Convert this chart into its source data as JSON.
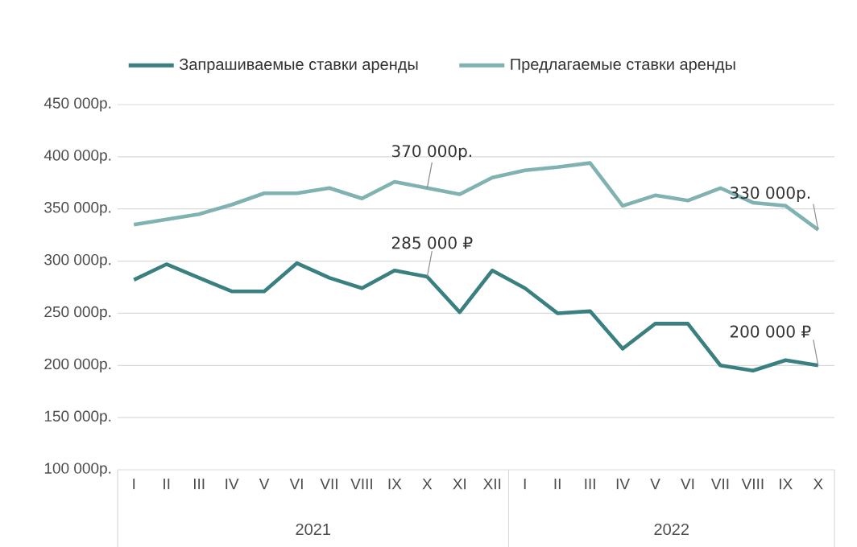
{
  "chart_data": {
    "type": "line",
    "categories": [
      "I",
      "II",
      "III",
      "IV",
      "V",
      "VI",
      "VII",
      "VIII",
      "IX",
      "X",
      "XI",
      "XII",
      "I",
      "II",
      "III",
      "IV",
      "V",
      "VI",
      "VII",
      "VIII",
      "IX",
      "X"
    ],
    "series": [
      {
        "name": "Запрашиваемые ставки аренды",
        "color": "#3b8080",
        "values": [
          282000,
          297000,
          284000,
          271000,
          271000,
          298000,
          284000,
          274000,
          291000,
          285000,
          251000,
          291000,
          274000,
          250000,
          252000,
          216000,
          240000,
          240000,
          200000,
          195000,
          205000,
          200000
        ],
        "value_labels": [
          null,
          null,
          null,
          null,
          null,
          null,
          null,
          null,
          null,
          "285 000 ₽",
          null,
          null,
          null,
          null,
          null,
          null,
          null,
          null,
          null,
          null,
          null,
          "200 000 ₽"
        ]
      },
      {
        "name": "Предлагаемые ставки аренды",
        "color": "#80b2b2",
        "values": [
          335000,
          340000,
          345000,
          354000,
          365000,
          365000,
          370000,
          360000,
          376000,
          370000,
          364000,
          380000,
          387000,
          390000,
          394000,
          353000,
          363000,
          358000,
          370000,
          356000,
          353000,
          330000
        ],
        "value_labels": [
          null,
          null,
          null,
          null,
          null,
          null,
          null,
          null,
          null,
          "370 000р.",
          null,
          null,
          null,
          null,
          null,
          null,
          null,
          null,
          null,
          null,
          null,
          "330 000р."
        ]
      }
    ],
    "ylim": [
      100000,
      450000
    ],
    "yticks": [
      {
        "value": 100000,
        "label": "100 000р."
      },
      {
        "value": 150000,
        "label": "150 000р."
      },
      {
        "value": 200000,
        "label": "200 000р."
      },
      {
        "value": 250000,
        "label": "250 000р."
      },
      {
        "value": 300000,
        "label": "300 000р."
      },
      {
        "value": 350000,
        "label": "350 000р."
      },
      {
        "value": 400000,
        "label": "400 000р."
      },
      {
        "value": 450000,
        "label": "450 000р."
      }
    ],
    "grid": "y",
    "legend": "top",
    "line_style": "solid",
    "annotations": [
      "2021",
      "2022"
    ]
  }
}
